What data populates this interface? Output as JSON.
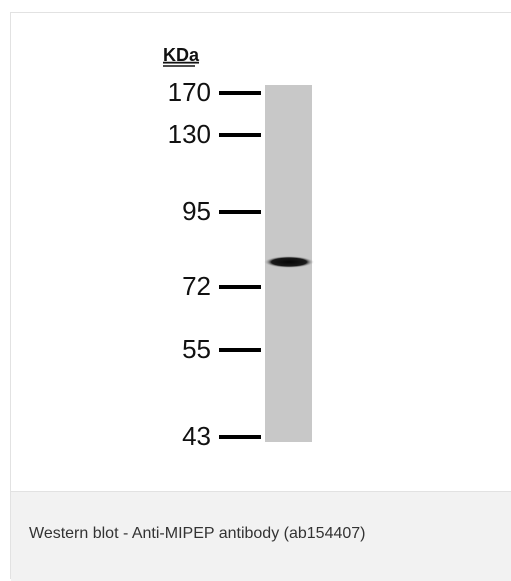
{
  "figure": {
    "unit": "KDa",
    "markers": [
      "170",
      "130",
      "95",
      "72",
      "55",
      "43"
    ]
  },
  "caption": "Western blot - Anti-MIPEP antibody (ab154407)"
}
